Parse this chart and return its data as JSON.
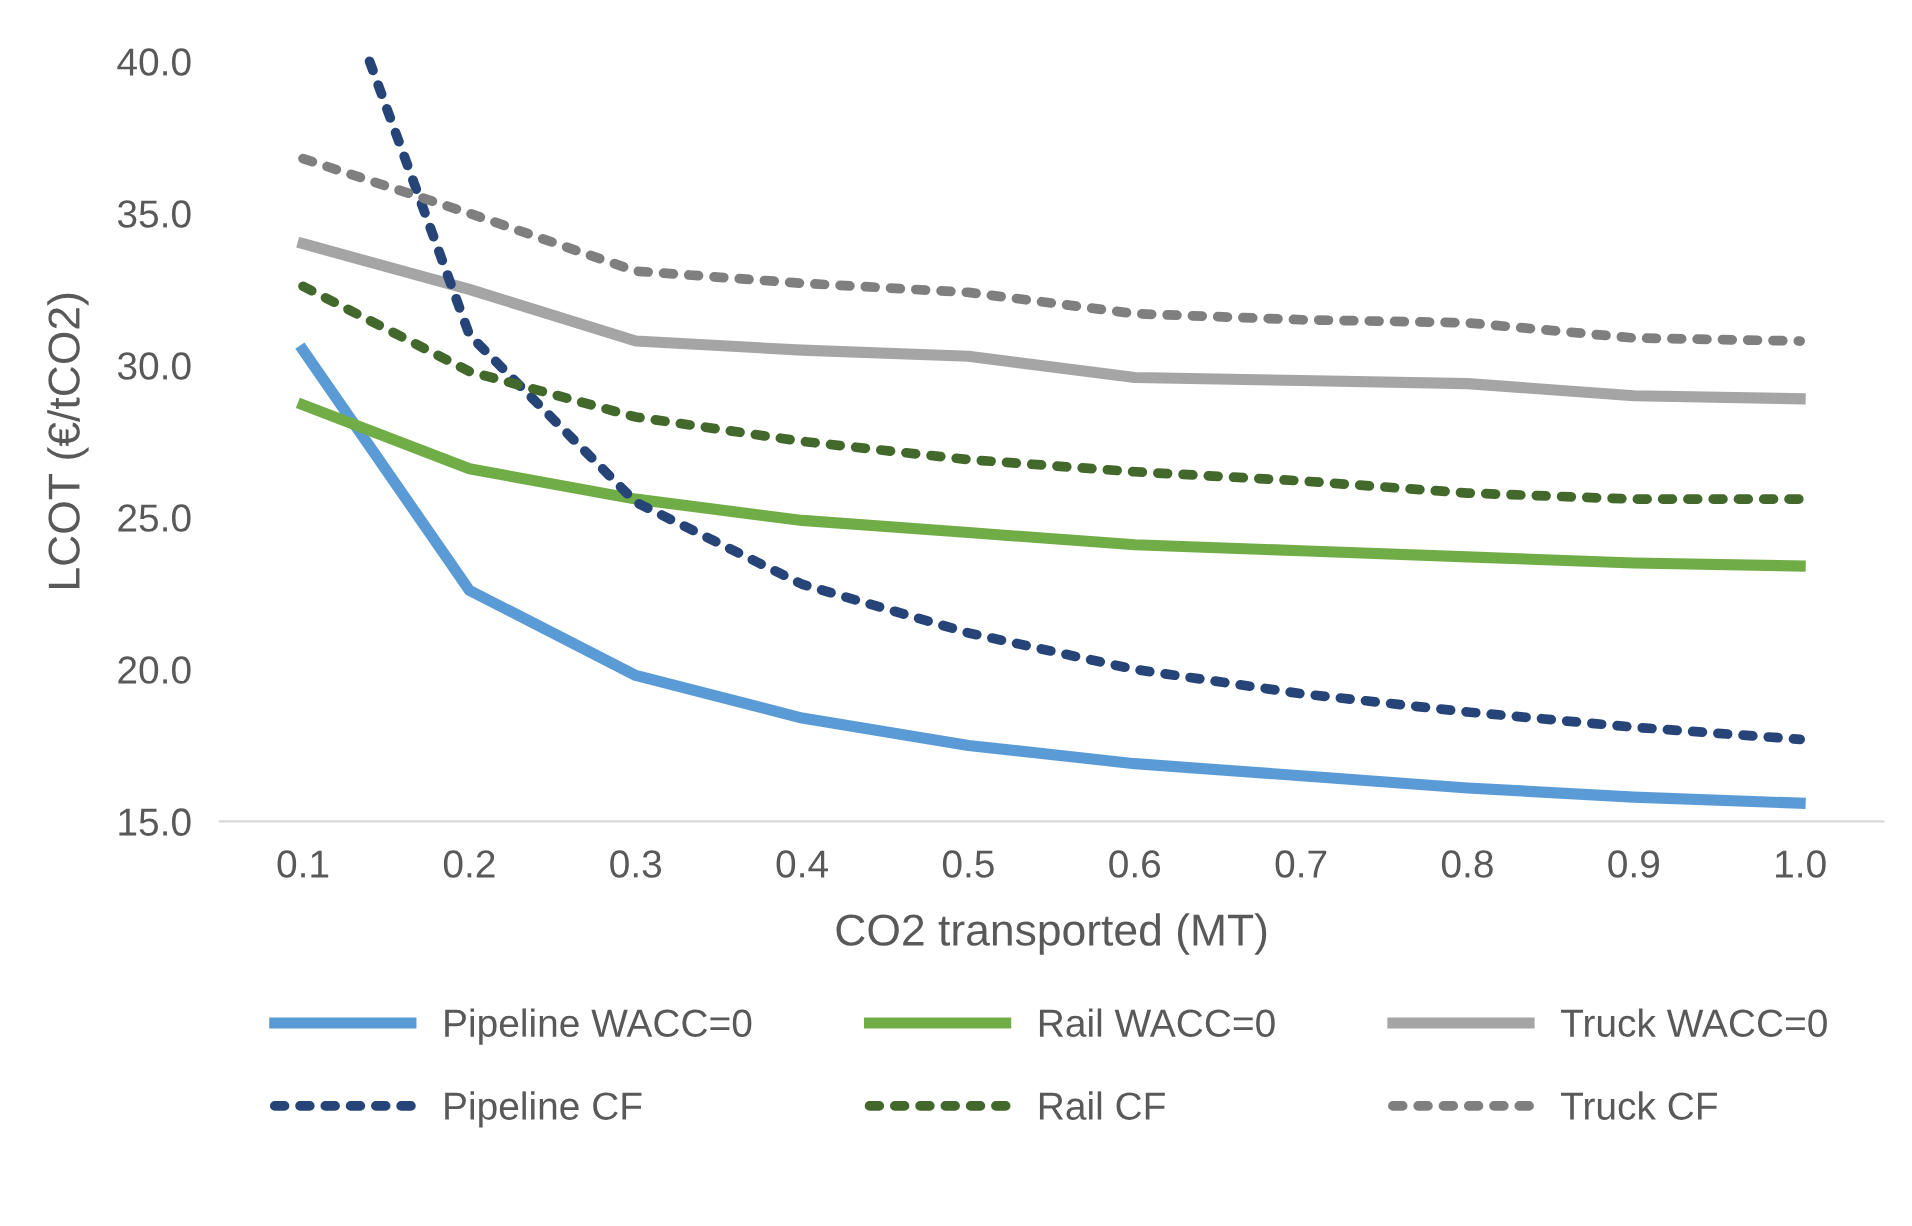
{
  "chart_data": {
    "type": "line",
    "xlabel": "CO2 transported (MT)",
    "ylabel": "LCOT (€/tCO2)",
    "x": [
      0.1,
      0.2,
      0.3,
      0.4,
      0.5,
      0.6,
      0.7,
      0.8,
      0.9,
      1.0
    ],
    "xlim": [
      0.05,
      1.05
    ],
    "xticks": [
      0.1,
      0.2,
      0.3,
      0.4,
      0.5,
      0.6,
      0.7,
      0.8,
      0.9,
      {
        "value": 1,
        "label": "1.0"
      }
    ],
    "ylim": [
      15,
      40
    ],
    "yticks": [
      {
        "value": 15,
        "label": "15.0"
      },
      {
        "value": 20,
        "label": "20.0"
      },
      {
        "value": 25,
        "label": "25.0"
      },
      {
        "value": 30,
        "label": "30.0"
      },
      {
        "value": 35,
        "label": "35.0"
      },
      {
        "value": 40,
        "label": "40.0"
      }
    ],
    "grid": false,
    "legend": "bottom",
    "marker": "none",
    "series": [
      {
        "name": "Pipeline WACC=0",
        "color": "#5b9bd5",
        "line_style": "solid",
        "values": [
          30.5,
          22.6,
          19.8,
          18.4,
          17.5,
          16.9,
          16.5,
          16.1,
          15.8,
          15.6
        ]
      },
      {
        "name": "Rail WACC=0",
        "color": "#70ad47",
        "line_style": "solid",
        "values": [
          28.7,
          26.6,
          25.6,
          24.9,
          24.5,
          24.1,
          23.9,
          23.7,
          23.5,
          23.4
        ]
      },
      {
        "name": "Truck WACC=0",
        "color": "#a5a5a5",
        "line_style": "solid",
        "values": [
          34.0,
          32.5,
          30.8,
          30.5,
          30.3,
          29.6,
          29.5,
          29.4,
          29.0,
          28.9
        ]
      },
      {
        "name": "Pipeline CF",
        "color": "#264478",
        "line_style": "dotted",
        "x": [
          0.14,
          0.2,
          0.3,
          0.4,
          0.5,
          0.6,
          0.7,
          0.8,
          0.9,
          1.0
        ],
        "values": [
          40.0,
          31.0,
          25.5,
          22.8,
          21.2,
          20.0,
          19.2,
          18.6,
          18.1,
          17.7
        ]
      },
      {
        "name": "Rail CF",
        "color": "#43682b",
        "line_style": "dotted",
        "values": [
          32.6,
          29.8,
          28.3,
          27.5,
          26.9,
          26.5,
          26.2,
          25.8,
          25.6,
          25.6
        ]
      },
      {
        "name": "Truck CF",
        "color": "#7f7f7f",
        "line_style": "dotted",
        "values": [
          36.8,
          35.0,
          33.1,
          32.7,
          32.4,
          31.7,
          31.5,
          31.4,
          30.9,
          30.8
        ]
      }
    ]
  }
}
